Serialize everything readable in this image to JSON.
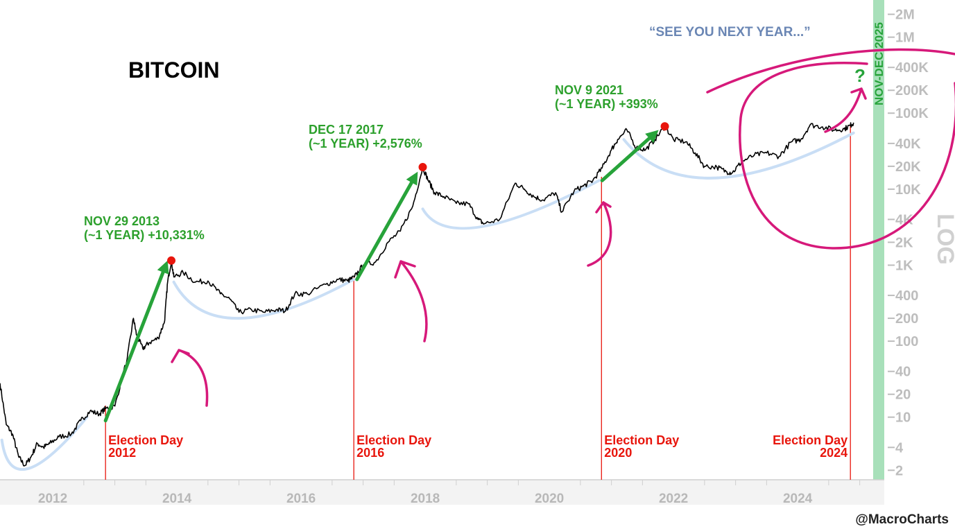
{
  "chart_data": {
    "type": "line",
    "title": "BITCOIN",
    "scale_label": "LOG",
    "y_scale": "log",
    "ylim": [
      1.5,
      2500000
    ],
    "xlim": [
      2011.15,
      2025.25
    ],
    "x_ticks": [
      {
        "x": 2012,
        "label": "2012"
      },
      {
        "x": 2014,
        "label": "2014"
      },
      {
        "x": 2016,
        "label": "2016"
      },
      {
        "x": 2018,
        "label": "2018"
      },
      {
        "x": 2020,
        "label": "2020"
      },
      {
        "x": 2022,
        "label": "2022"
      },
      {
        "x": 2024,
        "label": "2024"
      }
    ],
    "y_ticks": [
      {
        "v": 2000000,
        "label": "2M"
      },
      {
        "v": 1000000,
        "label": "1M"
      },
      {
        "v": 400000,
        "label": "400K"
      },
      {
        "v": 200000,
        "label": "200K"
      },
      {
        "v": 100000,
        "label": "100K"
      },
      {
        "v": 40000,
        "label": "40K"
      },
      {
        "v": 20000,
        "label": "20K"
      },
      {
        "v": 10000,
        "label": "10K"
      },
      {
        "v": 4000,
        "label": "4K"
      },
      {
        "v": 2000,
        "label": "2K"
      },
      {
        "v": 1000,
        "label": "1K"
      },
      {
        "v": 400,
        "label": "400"
      },
      {
        "v": 200,
        "label": "200"
      },
      {
        "v": 100,
        "label": "100"
      },
      {
        "v": 40,
        "label": "40"
      },
      {
        "v": 20,
        "label": "20"
      },
      {
        "v": 10,
        "label": "10"
      },
      {
        "v": 4,
        "label": "4"
      },
      {
        "v": 2,
        "label": "2"
      }
    ],
    "series": [
      {
        "color": "#000000",
        "points": [
          [
            2011.15,
            28
          ],
          [
            2011.25,
            8
          ],
          [
            2011.35,
            6
          ],
          [
            2011.45,
            3
          ],
          [
            2011.55,
            2.3
          ],
          [
            2011.65,
            3
          ],
          [
            2011.75,
            4.5
          ],
          [
            2011.85,
            4
          ],
          [
            2011.95,
            4.5
          ],
          [
            2012.1,
            5.5
          ],
          [
            2012.3,
            6
          ],
          [
            2012.45,
            9
          ],
          [
            2012.6,
            12
          ],
          [
            2012.75,
            11
          ],
          [
            2012.85,
            13
          ],
          [
            2013.0,
            14
          ],
          [
            2013.2,
            60
          ],
          [
            2013.3,
            200
          ],
          [
            2013.35,
            120
          ],
          [
            2013.45,
            80
          ],
          [
            2013.55,
            95
          ],
          [
            2013.7,
            110
          ],
          [
            2013.8,
            180
          ],
          [
            2013.85,
            600
          ],
          [
            2013.91,
            1150
          ],
          [
            2013.95,
            700
          ],
          [
            2014.1,
            800
          ],
          [
            2014.3,
            600
          ],
          [
            2014.5,
            620
          ],
          [
            2014.7,
            420
          ],
          [
            2014.85,
            360
          ],
          [
            2015.0,
            240
          ],
          [
            2015.2,
            260
          ],
          [
            2015.4,
            240
          ],
          [
            2015.6,
            260
          ],
          [
            2015.75,
            250
          ],
          [
            2015.9,
            420
          ],
          [
            2016.1,
            420
          ],
          [
            2016.4,
            560
          ],
          [
            2016.6,
            650
          ],
          [
            2016.75,
            620
          ],
          [
            2016.86,
            700
          ],
          [
            2017.0,
            1000
          ],
          [
            2017.2,
            1100
          ],
          [
            2017.4,
            2000
          ],
          [
            2017.6,
            2800
          ],
          [
            2017.8,
            6000
          ],
          [
            2017.96,
            19500
          ],
          [
            2018.05,
            13000
          ],
          [
            2018.15,
            9000
          ],
          [
            2018.3,
            8000
          ],
          [
            2018.5,
            6500
          ],
          [
            2018.7,
            6400
          ],
          [
            2018.85,
            4000
          ],
          [
            2018.95,
            3500
          ],
          [
            2019.2,
            4000
          ],
          [
            2019.45,
            12000
          ],
          [
            2019.6,
            10000
          ],
          [
            2019.75,
            8000
          ],
          [
            2019.9,
            7200
          ],
          [
            2020.1,
            9000
          ],
          [
            2020.2,
            5000
          ],
          [
            2020.4,
            9500
          ],
          [
            2020.55,
            11000
          ],
          [
            2020.7,
            13000
          ],
          [
            2020.85,
            19000
          ],
          [
            2021.0,
            33000
          ],
          [
            2021.1,
            45000
          ],
          [
            2021.25,
            60000
          ],
          [
            2021.4,
            35000
          ],
          [
            2021.55,
            33000
          ],
          [
            2021.7,
            45000
          ],
          [
            2021.86,
            67000
          ],
          [
            2022.0,
            45000
          ],
          [
            2022.2,
            42000
          ],
          [
            2022.35,
            30000
          ],
          [
            2022.5,
            20000
          ],
          [
            2022.7,
            19500
          ],
          [
            2022.85,
            17000
          ],
          [
            2022.95,
            16500
          ],
          [
            2023.1,
            23000
          ],
          [
            2023.3,
            28000
          ],
          [
            2023.5,
            30000
          ],
          [
            2023.7,
            27000
          ],
          [
            2023.9,
            42000
          ],
          [
            2024.05,
            45000
          ],
          [
            2024.2,
            70000
          ],
          [
            2024.4,
            66000
          ],
          [
            2024.6,
            60000
          ],
          [
            2024.75,
            62000
          ],
          [
            2024.85,
            69000
          ],
          [
            2024.9,
            75000
          ]
        ]
      }
    ],
    "trend_arrows": [
      {
        "from": [
          2012.85,
          9
        ],
        "to": [
          2013.85,
          1150
        ]
      },
      {
        "from": [
          2016.9,
          650
        ],
        "to": [
          2017.88,
          17000
        ]
      },
      {
        "from": [
          2020.85,
          13000
        ],
        "to": [
          2021.76,
          60000
        ]
      }
    ],
    "arcs": [
      {
        "from": [
          2011.18,
          5
        ],
        "mid": [
          2011.6,
          2.1
        ],
        "to": [
          2012.55,
          10
        ]
      },
      {
        "from": [
          2013.95,
          600
        ],
        "mid": [
          2015.0,
          200
        ],
        "to": [
          2016.85,
          650
        ]
      },
      {
        "from": [
          2017.96,
          5500
        ],
        "mid": [
          2018.9,
          3200
        ],
        "to": [
          2020.8,
          13000
        ]
      },
      {
        "from": [
          2021.2,
          45000
        ],
        "mid": [
          2022.65,
          14000
        ],
        "to": [
          2024.9,
          55000
        ]
      }
    ],
    "peaks": [
      {
        "x": 2013.91,
        "y": 1150,
        "label_line1": "NOV 29 2013",
        "label_line2": "(~1 YEAR) +10,331%"
      },
      {
        "x": 2017.96,
        "y": 19500,
        "label_line1": "DEC 17 2017",
        "label_line2": "(~1 YEAR) +2,576%"
      },
      {
        "x": 2021.86,
        "y": 67000,
        "label_line1": "NOV 9 2021",
        "label_line2": "(~1 YEAR) +393%"
      }
    ],
    "elections": [
      {
        "x": 2012.85,
        "label_line1": "Election Day",
        "label_line2": "2012"
      },
      {
        "x": 2016.85,
        "label_line1": "Election Day",
        "label_line2": "2016"
      },
      {
        "x": 2020.84,
        "label_line1": "Election Day",
        "label_line2": "2020"
      },
      {
        "x": 2024.85,
        "label_line1": "Election Day",
        "label_line2": "2024"
      }
    ],
    "forecast_band": {
      "x_start": 2024.85,
      "label": "NOV-DEC 2025",
      "color": "#a8e0ba"
    },
    "quote": "“SEE YOU NEXT YEAR...”",
    "question_mark": "?",
    "credit": "@MacroCharts",
    "colors": {
      "price": "#000000",
      "arrow": "#27a33a",
      "peak_dot": "#e8150c",
      "election_line": "#e8150c",
      "arc": "#c9def5",
      "marker": "#d6197a",
      "quote": "#6a86b4",
      "axis_text": "#bdbdbd"
    }
  }
}
